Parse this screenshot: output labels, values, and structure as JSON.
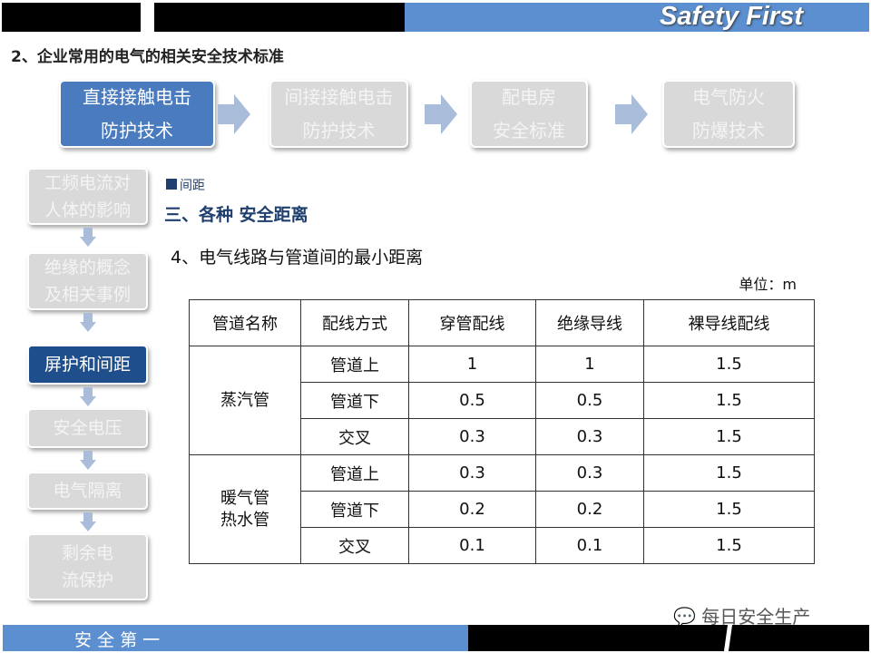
{
  "header": {
    "brand": "Safety First",
    "title": "2、企业常用的电气的相关安全技术标准"
  },
  "process": [
    {
      "line1": "直接接触电击",
      "line2": "防护技术",
      "active": true
    },
    {
      "line1": "间接接触电击",
      "line2": "防护技术",
      "active": false
    },
    {
      "line1": "配电房",
      "line2": "安全标准",
      "active": false
    },
    {
      "line1": "电气防火",
      "line2": "防爆技术",
      "active": false
    }
  ],
  "sidebar": [
    {
      "line1": "工频电流对",
      "line2": "人体的影响",
      "active": false
    },
    {
      "line1": "绝缘的概念",
      "line2": "及相关事例",
      "active": false
    },
    {
      "line1": "屏护和间距",
      "line2": "",
      "active": true
    },
    {
      "line1": "安全电压",
      "line2": "",
      "active": false
    },
    {
      "line1": "电气隔离",
      "line2": "",
      "active": false
    },
    {
      "line1": "剩余电",
      "line2": "流保护",
      "active": false
    }
  ],
  "main": {
    "tag": "间距",
    "section": "三、各种 安全距离",
    "subtitle": "4、电气线路与管道间的最小距离",
    "unit": "单位：m"
  },
  "table": {
    "headers": [
      "管道名称",
      "配线方式",
      "穿管配线",
      "绝缘导线",
      "裸导线配线"
    ],
    "groups": [
      {
        "name": "蒸汽管",
        "rows": [
          [
            "管道上",
            "1",
            "1",
            "1.5"
          ],
          [
            "管道下",
            "0.5",
            "0.5",
            "1.5"
          ],
          [
            "交叉",
            "0.3",
            "0.3",
            "1.5"
          ]
        ]
      },
      {
        "name": "暖气管\n热水管",
        "rows": [
          [
            "管道上",
            "0.3",
            "0.3",
            "1.5"
          ],
          [
            "管道下",
            "0.2",
            "0.2",
            "1.5"
          ],
          [
            "交叉",
            "0.1",
            "0.1",
            "1.5"
          ]
        ]
      }
    ]
  },
  "footer": {
    "text": "安 全 第 一",
    "watermark": "每日安全生产"
  },
  "colors": {
    "blue": "#5b8fd0",
    "active": "#4a7bbf",
    "sidebar_active": "#1f4e8c",
    "inactive": "#d9d9d9"
  }
}
